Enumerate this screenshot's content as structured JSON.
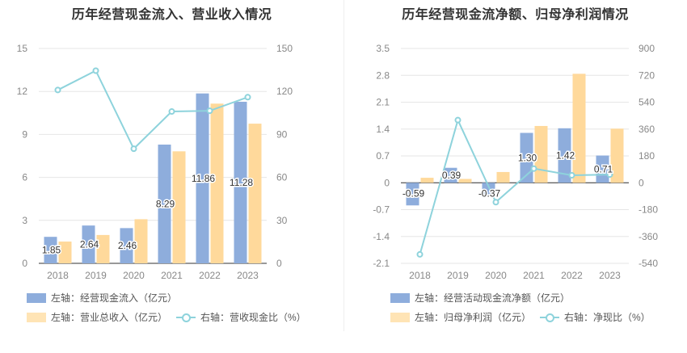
{
  "colors": {
    "bar1": "#8eaddc",
    "bar2": "#ffd99b",
    "line": "#8ed3dc",
    "grid": "#e6e6e6",
    "axis_text": "#888888"
  },
  "chart_data": [
    {
      "type": "bar",
      "title": "历年经营现金流入、营业收入情况",
      "categories": [
        "2018",
        "2019",
        "2020",
        "2021",
        "2022",
        "2023"
      ],
      "series": [
        {
          "name": "左轴：经营现金流入（亿元）",
          "axis": "left",
          "kind": "bar",
          "values": [
            1.85,
            2.64,
            2.46,
            8.29,
            11.86,
            11.28
          ],
          "data_labels": [
            "1.85",
            "2.64",
            "2.46",
            "8.29",
            "11.86",
            "11.28"
          ]
        },
        {
          "name": "左轴：营业总收入（亿元）",
          "axis": "left",
          "kind": "bar",
          "values": [
            1.52,
            1.98,
            3.08,
            7.82,
            11.15,
            9.75
          ]
        },
        {
          "name": "右轴：营收现金比（%）",
          "axis": "right",
          "kind": "line",
          "values": [
            121,
            134.5,
            80,
            106,
            106.5,
            116
          ]
        }
      ],
      "left_axis": {
        "ylim": [
          0,
          15
        ],
        "ticks": [
          "0",
          "3",
          "6",
          "9",
          "12",
          "15"
        ]
      },
      "right_axis": {
        "ylim": [
          0,
          150
        ],
        "ticks": [
          "0",
          "30",
          "60",
          "90",
          "120",
          "150"
        ]
      }
    },
    {
      "type": "bar",
      "title": "历年经营现金流净额、归母净利润情况",
      "categories": [
        "2018",
        "2019",
        "2020",
        "2021",
        "2022",
        "2023"
      ],
      "series": [
        {
          "name": "左轴：经营活动现金流净额（亿元）",
          "axis": "left",
          "kind": "bar",
          "values": [
            -0.59,
            0.39,
            -0.37,
            1.3,
            1.42,
            0.71
          ],
          "data_labels": [
            "-0.59",
            "0.39",
            "-0.37",
            "1.30",
            "1.42",
            "0.71"
          ]
        },
        {
          "name": "左轴：归母净利润（亿元）",
          "axis": "left",
          "kind": "bar",
          "values": [
            0.13,
            0.1,
            0.28,
            1.48,
            2.84,
            1.41
          ]
        },
        {
          "name": "右轴：净现比（%）",
          "axis": "right",
          "kind": "line",
          "values": [
            -480,
            420,
            -130,
            95,
            50,
            55
          ]
        }
      ],
      "left_axis": {
        "ylim": [
          -2.1,
          3.5
        ],
        "ticks": [
          "-2.1",
          "-1.4",
          "-0.7",
          "0",
          "0.7",
          "1.4",
          "2.1",
          "2.8",
          "3.5"
        ]
      },
      "right_axis": {
        "ylim": [
          -540,
          900
        ],
        "ticks": [
          "-540",
          "-360",
          "-180",
          "0",
          "180",
          "360",
          "540",
          "720",
          "900"
        ]
      }
    }
  ]
}
